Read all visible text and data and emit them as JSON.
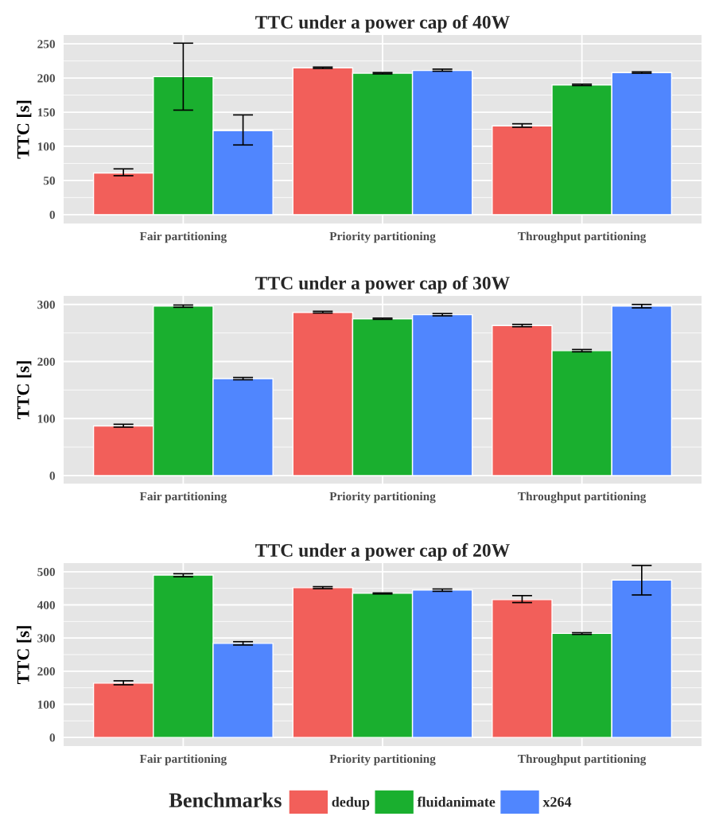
{
  "chart_data": [
    {
      "type": "bar",
      "title": "TTC under a power cap of 40W",
      "ylabel": "TTC [s]",
      "categories": [
        "Fair partitioning",
        "Priority partitioning",
        "Throughput partitioning"
      ],
      "ylim": [
        -13,
        263
      ],
      "yticks": [
        0,
        50,
        100,
        150,
        200,
        250
      ],
      "grid": true,
      "series": [
        {
          "color": "#f25f5a",
          "values": [
            61,
            215,
            130
          ],
          "errors": [
            [
              57,
              67
            ],
            [
              214,
              216
            ],
            [
              128,
              133
            ]
          ]
        },
        {
          "color": "#1aaf2f",
          "values": [
            202,
            207,
            190
          ],
          "errors": [
            [
              153,
              251
            ],
            [
              206,
              208
            ],
            [
              189,
              191
            ]
          ]
        },
        {
          "color": "#5086fe",
          "values": [
            123,
            211,
            208
          ],
          "errors": [
            [
              102,
              146
            ],
            [
              210,
              213
            ],
            [
              207,
              209
            ]
          ]
        }
      ]
    },
    {
      "type": "bar",
      "title": "TTC under a power cap of 30W",
      "ylabel": "TTC [s]",
      "categories": [
        "Fair partitioning",
        "Priority partitioning",
        "Throughput partitioning"
      ],
      "ylim": [
        -14,
        315
      ],
      "yticks": [
        0,
        100,
        200,
        300
      ],
      "grid": true,
      "series": [
        {
          "color": "#f25f5a",
          "values": [
            87,
            286,
            263
          ],
          "errors": [
            [
              85,
              90
            ],
            [
              285,
              288
            ],
            [
              261,
              265
            ]
          ]
        },
        {
          "color": "#1aaf2f",
          "values": [
            297,
            275,
            219
          ],
          "errors": [
            [
              295,
              299
            ],
            [
              274,
              276
            ],
            [
              217,
              221
            ]
          ]
        },
        {
          "color": "#5086fe",
          "values": [
            170,
            282,
            297
          ],
          "errors": [
            [
              168,
              172
            ],
            [
              280,
              284
            ],
            [
              294,
              300
            ]
          ]
        }
      ]
    },
    {
      "type": "bar",
      "title": "TTC under a power cap of 20W",
      "ylabel": "TTC [s]",
      "categories": [
        "Fair partitioning",
        "Priority partitioning",
        "Throughput partitioning"
      ],
      "ylim": [
        -26,
        526
      ],
      "yticks": [
        0,
        100,
        200,
        300,
        400,
        500
      ],
      "grid": true,
      "legend": "bottom",
      "legend_title": "Benchmarks",
      "series": [
        {
          "name": "dedup",
          "color": "#f25f5a",
          "values": [
            164,
            452,
            416
          ],
          "errors": [
            [
              159,
              171
            ],
            [
              449,
              455
            ],
            [
              407,
              428
            ]
          ]
        },
        {
          "name": "fluidanimate",
          "color": "#1aaf2f",
          "values": [
            490,
            435,
            314
          ],
          "errors": [
            [
              485,
              494
            ],
            [
              433,
              436
            ],
            [
              311,
              316
            ]
          ]
        },
        {
          "name": "x264",
          "color": "#5086fe",
          "values": [
            284,
            445,
            475
          ],
          "errors": [
            [
              279,
              289
            ],
            [
              441,
              448
            ],
            [
              430,
              519
            ]
          ]
        }
      ]
    }
  ]
}
